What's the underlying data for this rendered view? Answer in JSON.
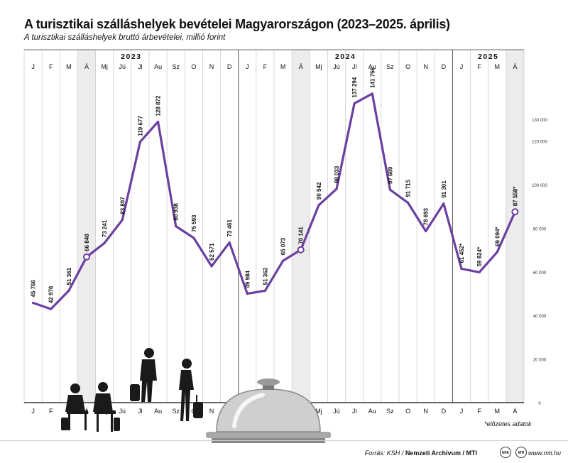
{
  "title": "A turisztikai szálláshelyek bevételei Magyarországon (2023–2025. április)",
  "subtitle": "A turisztikai szálláshelyek bruttó árbevételei, millió forint",
  "footnote": "*előzetes adatok",
  "footer": {
    "source_prefix": "Forrás: KSH / ",
    "source_bold": "Nemzeti Archívum / MTI",
    "logo1": "NFA",
    "logo2": "MTI",
    "site": "www.mti.hu"
  },
  "chart_data": {
    "type": "line",
    "years": [
      {
        "label": "2023",
        "start": 0,
        "end": 11
      },
      {
        "label": "2024",
        "start": 12,
        "end": 23
      },
      {
        "label": "2025",
        "start": 24,
        "end": 27
      }
    ],
    "categories": [
      "J",
      "F",
      "M",
      "Á",
      "Mj",
      "Jú",
      "Jl",
      "Au",
      "Sz",
      "O",
      "N",
      "D",
      "J",
      "F",
      "M",
      "Á",
      "Mj",
      "Jú",
      "Jl",
      "Au",
      "Sz",
      "O",
      "N",
      "D",
      "J",
      "F",
      "M",
      "Á"
    ],
    "highlight_months": [
      3,
      15,
      27
    ],
    "values": [
      45766,
      42976,
      51361,
      66848,
      73241,
      83807,
      119677,
      128872,
      80938,
      75593,
      62571,
      73461,
      49984,
      51362,
      65073,
      70141,
      90542,
      98033,
      137294,
      141756,
      97689,
      91715,
      78693,
      91301,
      61452,
      59824,
      69094,
      87558
    ],
    "value_labels": [
      "45 766",
      "42 976",
      "51 361",
      "66 848",
      "73 241",
      "83 807",
      "119 677",
      "128 872",
      "80 938",
      "75 593",
      "62 571",
      "73 461",
      "49 984",
      "51 362",
      "65 073",
      "70 141",
      "90 542",
      "98 033",
      "137 294",
      "141 756",
      "97 689",
      "91 715",
      "78 693",
      "91 301",
      "61 452*",
      "59 824*",
      "69 094*",
      "87 558*"
    ],
    "marked_points": [
      3,
      15,
      27
    ],
    "ylim": [
      0,
      140000
    ],
    "yticks": [
      0,
      20000,
      40000,
      60000,
      80000,
      100000,
      120000,
      130000
    ],
    "ytick_labels": [
      "0",
      "20 000",
      "40 000",
      "60 000",
      "80 000",
      "100 000",
      "120 000",
      "130 000"
    ],
    "line_color": "#6b3fa0",
    "highlight_color": "#ececec",
    "grid": true
  }
}
